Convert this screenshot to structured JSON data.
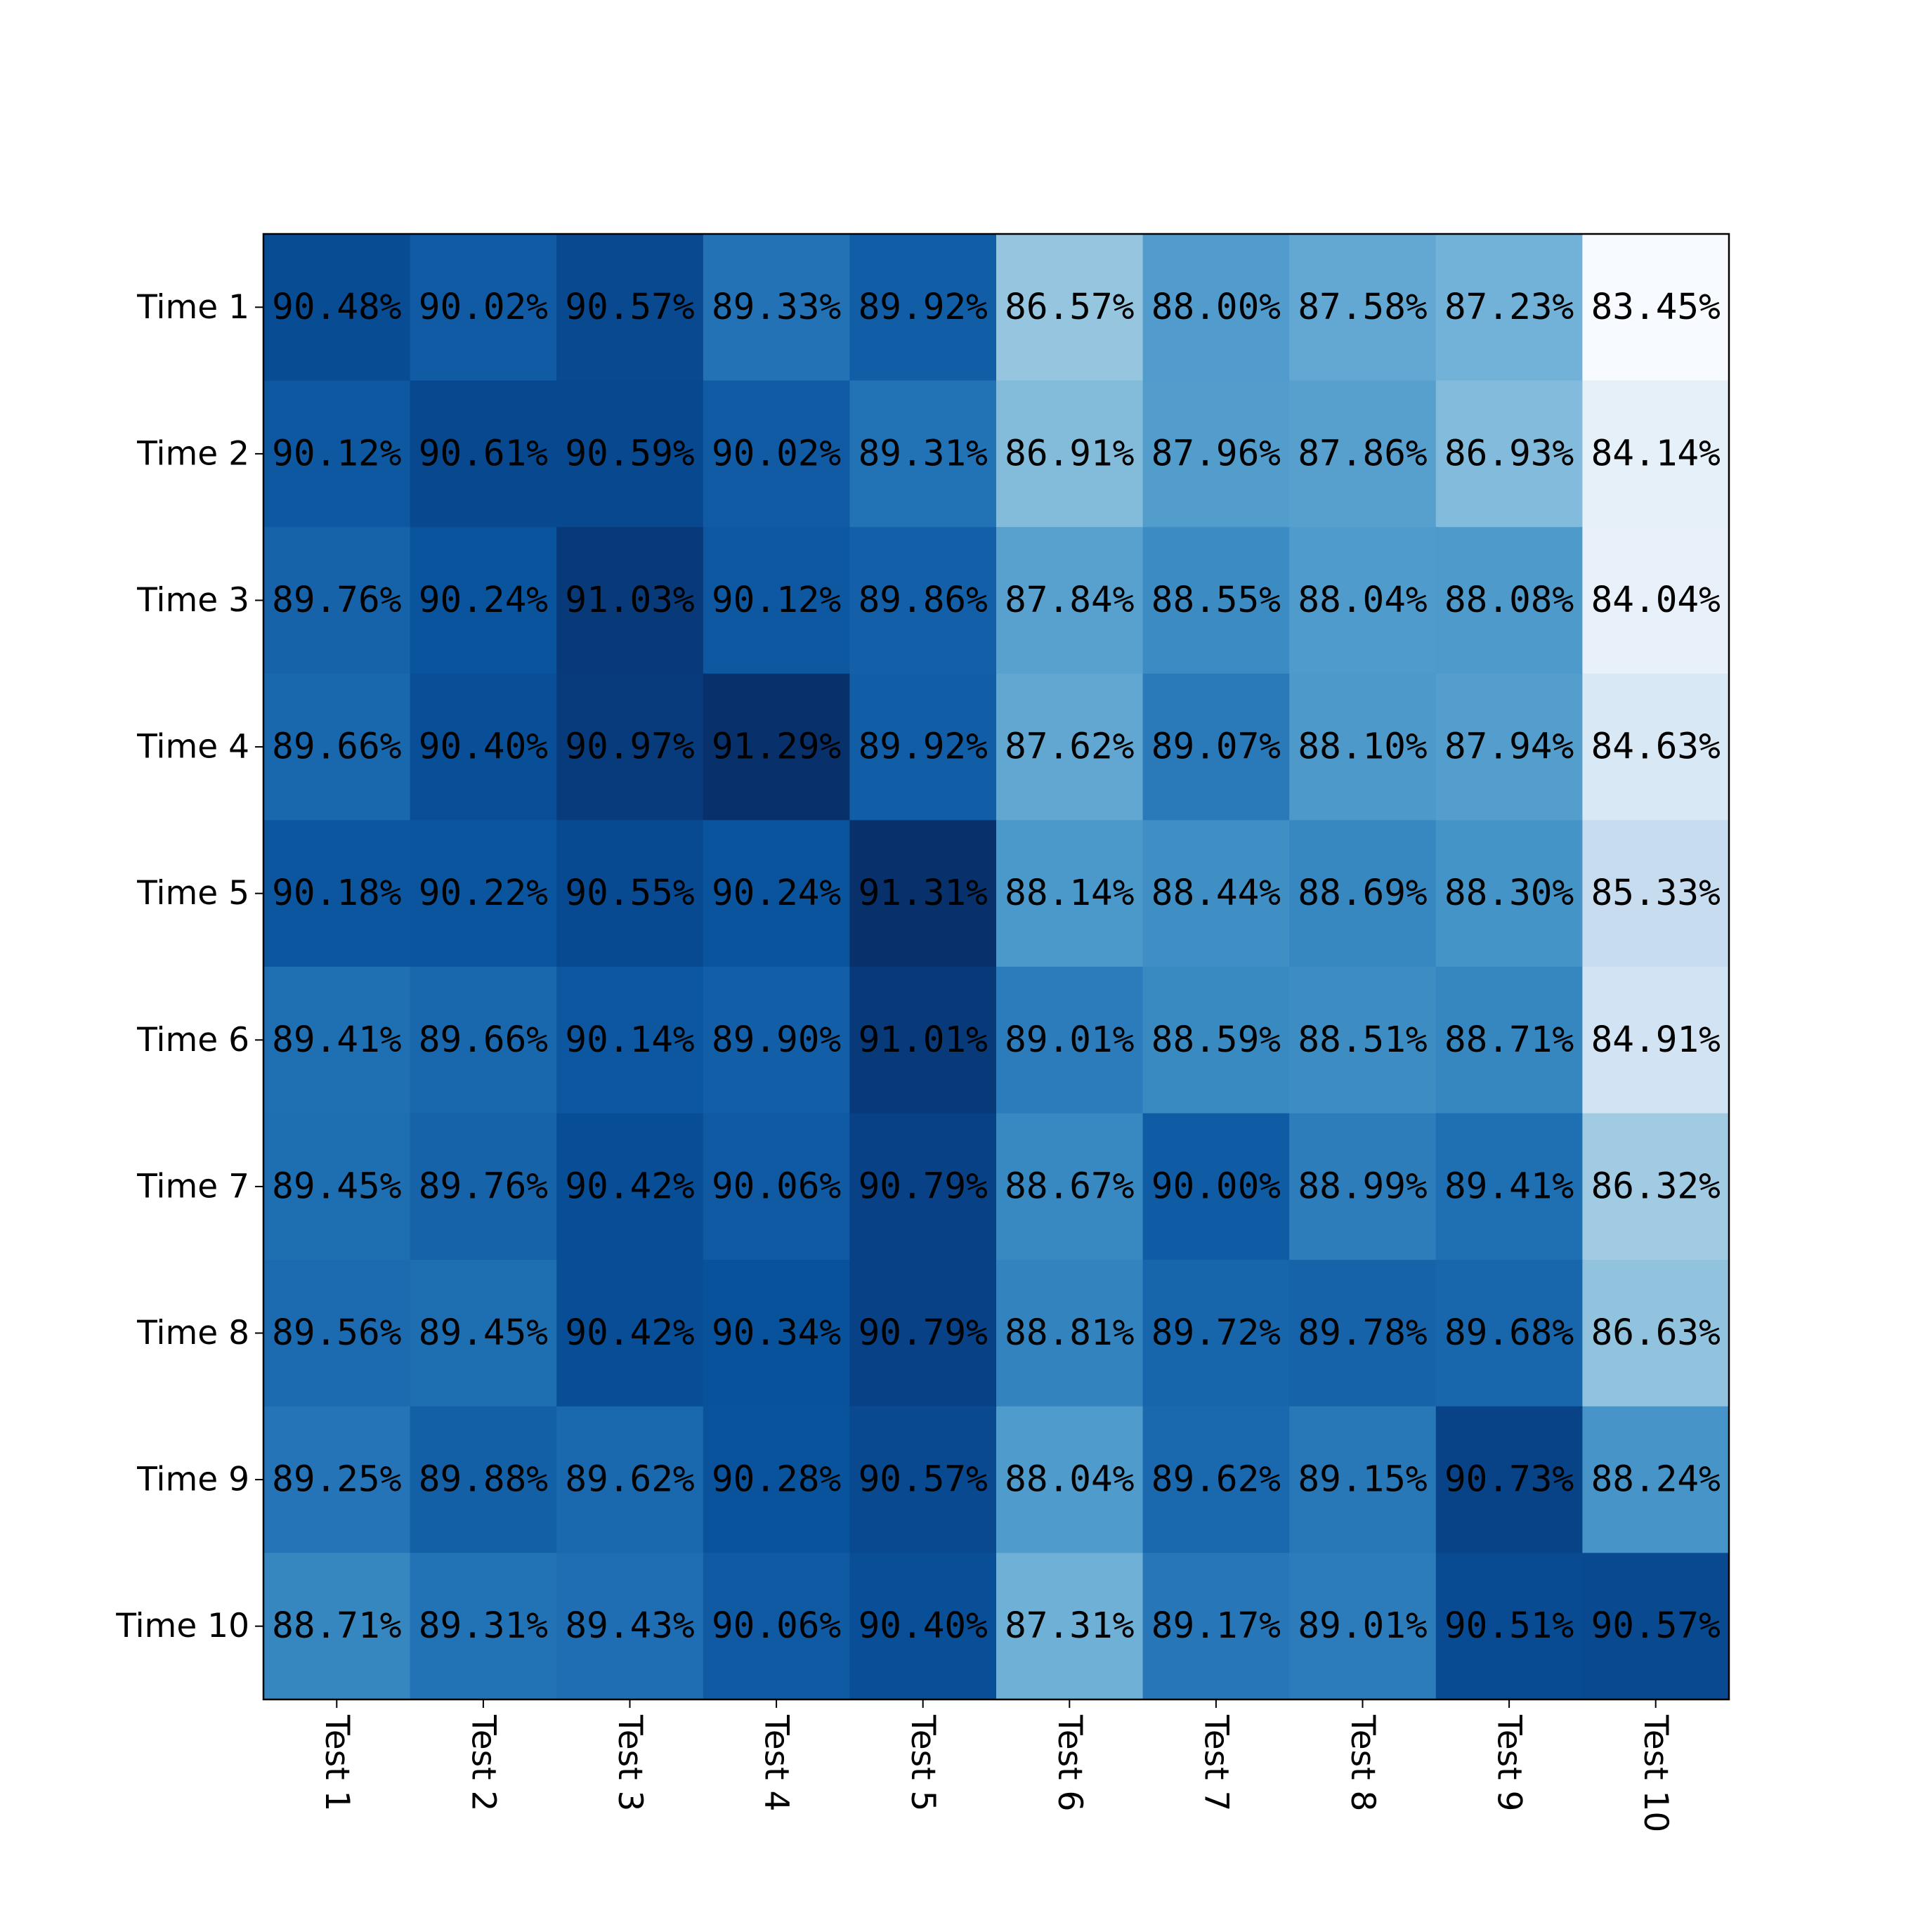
{
  "chart_data": {
    "type": "heatmap",
    "title": "",
    "xlabel": "",
    "ylabel": "",
    "colormap": "Blues",
    "value_format": "percent, 2 decimals",
    "x_categories": [
      "Test 1",
      "Test 2",
      "Test 3",
      "Test 4",
      "Test 5",
      "Test 6",
      "Test 7",
      "Test 8",
      "Test 9",
      "Test 10"
    ],
    "y_categories": [
      "Time 1",
      "Time 2",
      "Time 3",
      "Time 4",
      "Time 5",
      "Time 6",
      "Time 7",
      "Time 8",
      "Time 9",
      "Time 10"
    ],
    "x_tick_rotation": "rotated 90° clockwise",
    "grid": false,
    "legend": "none",
    "values": [
      [
        90.48,
        90.02,
        90.57,
        89.33,
        89.92,
        86.57,
        88.0,
        87.58,
        87.23,
        83.45
      ],
      [
        90.12,
        90.61,
        90.59,
        90.02,
        89.31,
        86.91,
        87.96,
        87.86,
        86.93,
        84.14
      ],
      [
        89.76,
        90.24,
        91.03,
        90.12,
        89.86,
        87.84,
        88.55,
        88.04,
        88.08,
        84.04
      ],
      [
        89.66,
        90.4,
        90.97,
        91.29,
        89.92,
        87.62,
        89.07,
        88.1,
        87.94,
        84.63
      ],
      [
        90.18,
        90.22,
        90.55,
        90.24,
        91.31,
        88.14,
        88.44,
        88.69,
        88.3,
        85.33
      ],
      [
        89.41,
        89.66,
        90.14,
        89.9,
        91.01,
        89.01,
        88.59,
        88.51,
        88.71,
        84.91
      ],
      [
        89.45,
        89.76,
        90.42,
        90.06,
        90.79,
        88.67,
        90.0,
        88.99,
        89.41,
        86.32
      ],
      [
        89.56,
        89.45,
        90.42,
        90.34,
        90.79,
        88.81,
        89.72,
        89.78,
        89.68,
        86.63
      ],
      [
        89.25,
        89.88,
        89.62,
        90.28,
        90.57,
        88.04,
        89.62,
        89.15,
        90.73,
        88.24
      ],
      [
        88.71,
        89.31,
        89.43,
        90.06,
        90.4,
        87.31,
        89.17,
        89.01,
        90.51,
        90.57
      ]
    ]
  }
}
